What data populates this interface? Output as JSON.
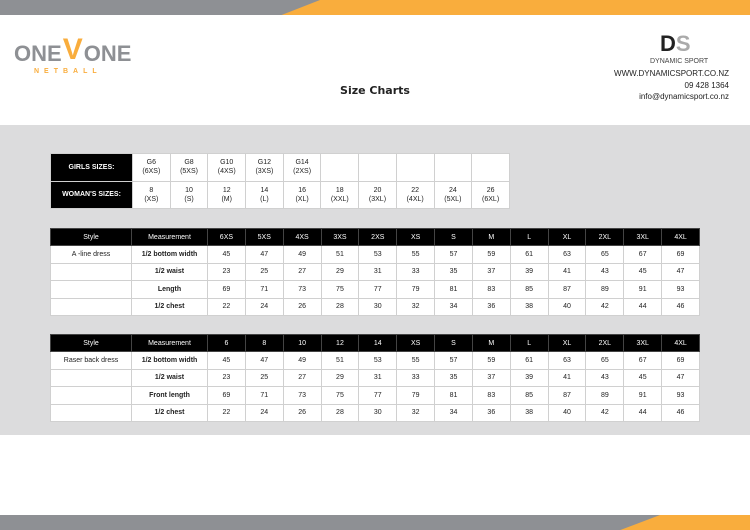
{
  "header": {
    "brand_left": {
      "one": "ONE",
      "v": "V",
      "one2": "ONE",
      "sub": "NETBALL"
    },
    "title": "Size Charts",
    "brand_right": {
      "mark": "DS",
      "name": "DYNAMIC SPORT"
    },
    "contact": {
      "website": "WWW.DYNAMICSPORT.CO.NZ",
      "phone": "09  428 1364",
      "email": "info@dynamicsport.co.nz"
    }
  },
  "colors": {
    "accent": "#f9ad3d",
    "gray": "#8e9094",
    "band": "#dcdcdd"
  },
  "size_table": {
    "rows": [
      {
        "label": "GIRLS SIZES:",
        "cells": [
          [
            "G6",
            "(6XS)"
          ],
          [
            "G8",
            "(5XS)"
          ],
          [
            "G10",
            "(4XS)"
          ],
          [
            "G12",
            "(3XS)"
          ],
          [
            "G14",
            "(2XS)"
          ],
          [
            "",
            ""
          ],
          [
            "",
            ""
          ],
          [
            "",
            ""
          ],
          [
            "",
            ""
          ],
          [
            "",
            ""
          ]
        ]
      },
      {
        "label": "WOMAN'S SIZES:",
        "cells": [
          [
            "8",
            "(XS)"
          ],
          [
            "10",
            "(S)"
          ],
          [
            "12",
            "(M)"
          ],
          [
            "14",
            "(L)"
          ],
          [
            "16",
            "(XL)"
          ],
          [
            "18",
            "(XXL)"
          ],
          [
            "20",
            "(3XL)"
          ],
          [
            "22",
            "(4XL)"
          ],
          [
            "24",
            "(5XL)"
          ],
          [
            "26",
            "(6XL)"
          ]
        ]
      }
    ]
  },
  "style_tables": [
    {
      "headers": [
        "Style",
        "Measurement",
        "6XS",
        "5XS",
        "4XS",
        "3XS",
        "2XS",
        "XS",
        "S",
        "M",
        "L",
        "XL",
        "2XL",
        "3XL",
        "4XL"
      ],
      "rows": [
        {
          "style": "A -line dress",
          "measurement": "1/2 bottom width",
          "values": [
            "45",
            "47",
            "49",
            "51",
            "53",
            "55",
            "57",
            "59",
            "61",
            "63",
            "65",
            "67",
            "69"
          ]
        },
        {
          "style": "",
          "measurement": "1/2 waist",
          "values": [
            "23",
            "25",
            "27",
            "29",
            "31",
            "33",
            "35",
            "37",
            "39",
            "41",
            "43",
            "45",
            "47"
          ]
        },
        {
          "style": "",
          "measurement": "Length",
          "values": [
            "69",
            "71",
            "73",
            "75",
            "77",
            "79",
            "81",
            "83",
            "85",
            "87",
            "89",
            "91",
            "93"
          ]
        },
        {
          "style": "",
          "measurement": "1/2 chest",
          "values": [
            "22",
            "24",
            "26",
            "28",
            "30",
            "32",
            "34",
            "36",
            "38",
            "40",
            "42",
            "44",
            "46"
          ]
        }
      ]
    },
    {
      "headers": [
        "Style",
        "Measurement",
        "6",
        "8",
        "10",
        "12",
        "14",
        "XS",
        "S",
        "M",
        "L",
        "XL",
        "2XL",
        "3XL",
        "4XL"
      ],
      "rows": [
        {
          "style": "Raser back dress",
          "measurement": "1/2 bottom width",
          "values": [
            "45",
            "47",
            "49",
            "51",
            "53",
            "55",
            "57",
            "59",
            "61",
            "63",
            "65",
            "67",
            "69"
          ]
        },
        {
          "style": "",
          "measurement": "1/2 waist",
          "values": [
            "23",
            "25",
            "27",
            "29",
            "31",
            "33",
            "35",
            "37",
            "39",
            "41",
            "43",
            "45",
            "47"
          ]
        },
        {
          "style": "",
          "measurement": "Front length",
          "values": [
            "69",
            "71",
            "73",
            "75",
            "77",
            "79",
            "81",
            "83",
            "85",
            "87",
            "89",
            "91",
            "93"
          ]
        },
        {
          "style": "",
          "measurement": "1/2 chest",
          "values": [
            "22",
            "24",
            "26",
            "28",
            "30",
            "32",
            "34",
            "36",
            "38",
            "40",
            "42",
            "44",
            "46"
          ]
        }
      ]
    }
  ]
}
